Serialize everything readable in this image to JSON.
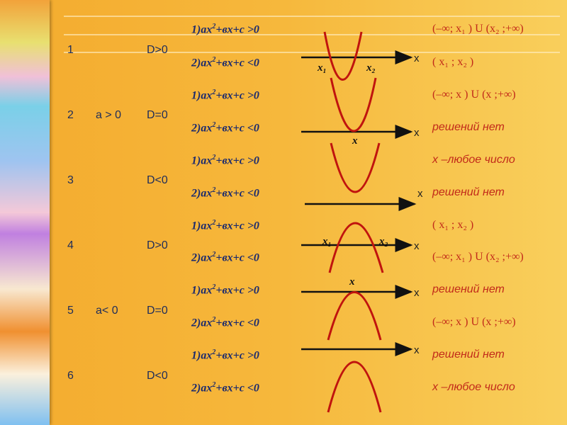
{
  "rows": [
    {
      "n": "1",
      "a": "",
      "d": "D>0"
    },
    {
      "n": "2",
      "a": "a > 0",
      "d": "D=0"
    },
    {
      "n": "3",
      "a": "",
      "d": "D<0"
    },
    {
      "n": "4",
      "a": "",
      "d": "D>0"
    },
    {
      "n": "5",
      "a": "a< 0",
      "d": "D=0"
    },
    {
      "n": "6",
      "a": "",
      "d": "D<0"
    }
  ],
  "eq": {
    "gt_prefix": "1)ax",
    "lt_prefix": "2)ax",
    "exp": "2",
    "gt_suffix": "+вx+c >0",
    "lt_suffix": "+вx+c <0"
  },
  "answers": [
    "(–∞; x₁ ) U (x₂ ;+∞)",
    "( x₁ ; x₂  )",
    "(–∞; x ) U (x ;+∞)",
    "решений нет",
    "x –любое число",
    "решений нет",
    "( x₁ ; x₂  )",
    "(–∞; x₁ ) U (x₂ ;+∞)",
    "решений нет",
    "(–∞; x ) U (x ;+∞)",
    "решений нет",
    "x –любое число"
  ],
  "graph": {
    "axis": "x",
    "x1": "x₁",
    "x2": "x₂",
    "x": "x"
  },
  "colors": {
    "curve": "#c0140e",
    "answer": "#c22a1a",
    "equation": "#1b2a6e"
  }
}
